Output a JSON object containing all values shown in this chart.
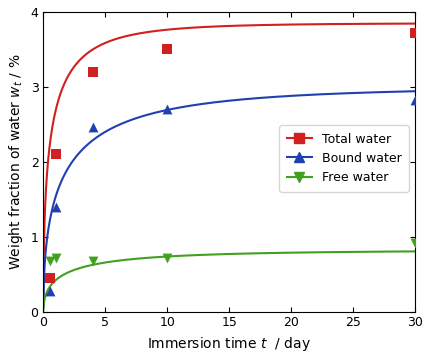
{
  "total_data_x": [
    0.5,
    1.0,
    4.0,
    10.0,
    30.0
  ],
  "total_data_y": [
    0.45,
    2.1,
    3.2,
    3.5,
    3.72
  ],
  "bound_data_x": [
    0.5,
    1.0,
    4.0,
    10.0,
    30.0
  ],
  "bound_data_y": [
    0.27,
    1.4,
    2.47,
    2.7,
    2.83
  ],
  "free_data_x": [
    0.5,
    1.0,
    4.0,
    10.0,
    30.0
  ],
  "free_data_y": [
    0.68,
    0.72,
    0.67,
    0.72,
    0.92
  ],
  "total_color": "#d12020",
  "bound_color": "#2040b0",
  "free_color": "#40a020",
  "total_sat": 3.85,
  "bound_sat": 3.0,
  "free_sat": 0.82,
  "total_k": 1.2,
  "bound_k": 0.72,
  "free_k": 0.72,
  "xlim": [
    0,
    30
  ],
  "ylim": [
    0,
    4.0
  ],
  "xlabel": "Immersion time $t$  / day",
  "ylabel": "Weight fraction of water $w_t$ / %",
  "xticks": [
    0,
    5,
    10,
    15,
    20,
    25,
    30
  ],
  "yticks": [
    0,
    1,
    2,
    3,
    4
  ],
  "legend_labels": [
    "Total water",
    "Bound water",
    "Free water"
  ],
  "fig_width": 4.3,
  "fig_height": 3.6,
  "dpi": 100
}
